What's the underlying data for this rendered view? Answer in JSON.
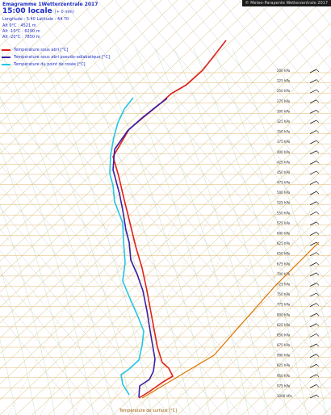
{
  "header": {
    "title": "Emagramme 1Wetterzentrale 2017",
    "time": "15:00 locale",
    "time_note": "(+ 0 min)",
    "location": "Longitude : 5.40 Latitude : 44.70",
    "lines": [
      "Alt 0°C : 4521 m",
      "Alt -10°C : 6290 m",
      "Alt -20°C : 7850 m"
    ]
  },
  "copyright": "© Meteo-Parapente Wetterzentrale 2017",
  "legend": [
    {
      "label": "Température sous abri [°C]",
      "color": "#e0201c"
    },
    {
      "label": "Température sous abri pseudo-adiabatique [°C]",
      "color": "#3a1fa8"
    },
    {
      "label": "Température du point de rosée [°C]",
      "color": "#21c7e6"
    }
  ],
  "x_axis_footer": "Température de surface [°C]",
  "chart_data": {
    "type": "line",
    "title": "",
    "ylabel": "",
    "grid": true,
    "pressure_labels": [
      1000,
      975,
      950,
      925,
      900,
      875,
      850,
      825,
      800,
      775,
      750,
      725,
      700,
      675,
      650,
      625,
      600,
      575,
      550,
      525,
      500,
      475,
      450,
      425,
      400,
      375,
      350,
      325,
      300,
      275,
      250,
      225,
      200
    ],
    "series": [
      {
        "name": "Température sous abri [°C]",
        "color": "#e0201c",
        "points": [
          [
            172,
            493
          ],
          [
            185,
            485
          ],
          [
            202,
            473
          ],
          [
            214,
            466
          ],
          [
            209,
            456
          ],
          [
            201,
            449
          ],
          [
            195,
            430
          ],
          [
            189,
            398
          ],
          [
            182,
            360
          ],
          [
            176,
            332
          ],
          [
            168,
            305
          ],
          [
            160,
            272
          ],
          [
            154,
            248
          ],
          [
            147,
            218
          ],
          [
            140,
            194
          ],
          [
            160,
            160
          ],
          [
            178,
            145
          ],
          [
            199,
            128
          ],
          [
            212,
            116
          ],
          [
            231,
            105
          ],
          [
            251,
            87
          ],
          [
            266,
            68
          ],
          [
            280,
            50
          ]
        ]
      },
      {
        "name": "Température sous abri pseudo-adiabatique [°C]",
        "color": "#3a1fa8",
        "points": [
          [
            172,
            492
          ],
          [
            173,
            478
          ],
          [
            185,
            470
          ],
          [
            190,
            460
          ],
          [
            192,
            445
          ],
          [
            186,
            410
          ],
          [
            182,
            385
          ],
          [
            177,
            360
          ],
          [
            170,
            340
          ],
          [
            162,
            322
          ],
          [
            160,
            300
          ],
          [
            156,
            285
          ],
          [
            152,
            260
          ],
          [
            148,
            240
          ],
          [
            140,
            210
          ],
          [
            142,
            185
          ],
          [
            158,
            162
          ],
          [
            176,
            146
          ],
          [
            196,
            130
          ],
          [
            207,
            122
          ]
        ]
      },
      {
        "name": "Température du point de rosée [°C]",
        "color": "#21c7e6",
        "points": [
          [
            160,
            489
          ],
          [
            152,
            476
          ],
          [
            150,
            464
          ],
          [
            160,
            457
          ],
          [
            172,
            446
          ],
          [
            176,
            428
          ],
          [
            178,
            410
          ],
          [
            170,
            390
          ],
          [
            162,
            372
          ],
          [
            152,
            348
          ],
          [
            155,
            325
          ],
          [
            153,
            300
          ],
          [
            152,
            276
          ],
          [
            142,
            250
          ],
          [
            140,
            230
          ],
          [
            136,
            215
          ],
          [
            137,
            192
          ],
          [
            141,
            170
          ],
          [
            146,
            152
          ],
          [
            154,
            135
          ],
          [
            165,
            121
          ]
        ]
      }
    ],
    "parcel": {
      "color": "#d97500",
      "points": [
        [
          176,
          493
        ],
        [
          265,
          440
        ],
        [
          340,
          355
        ],
        [
          395,
          300
        ]
      ]
    }
  }
}
